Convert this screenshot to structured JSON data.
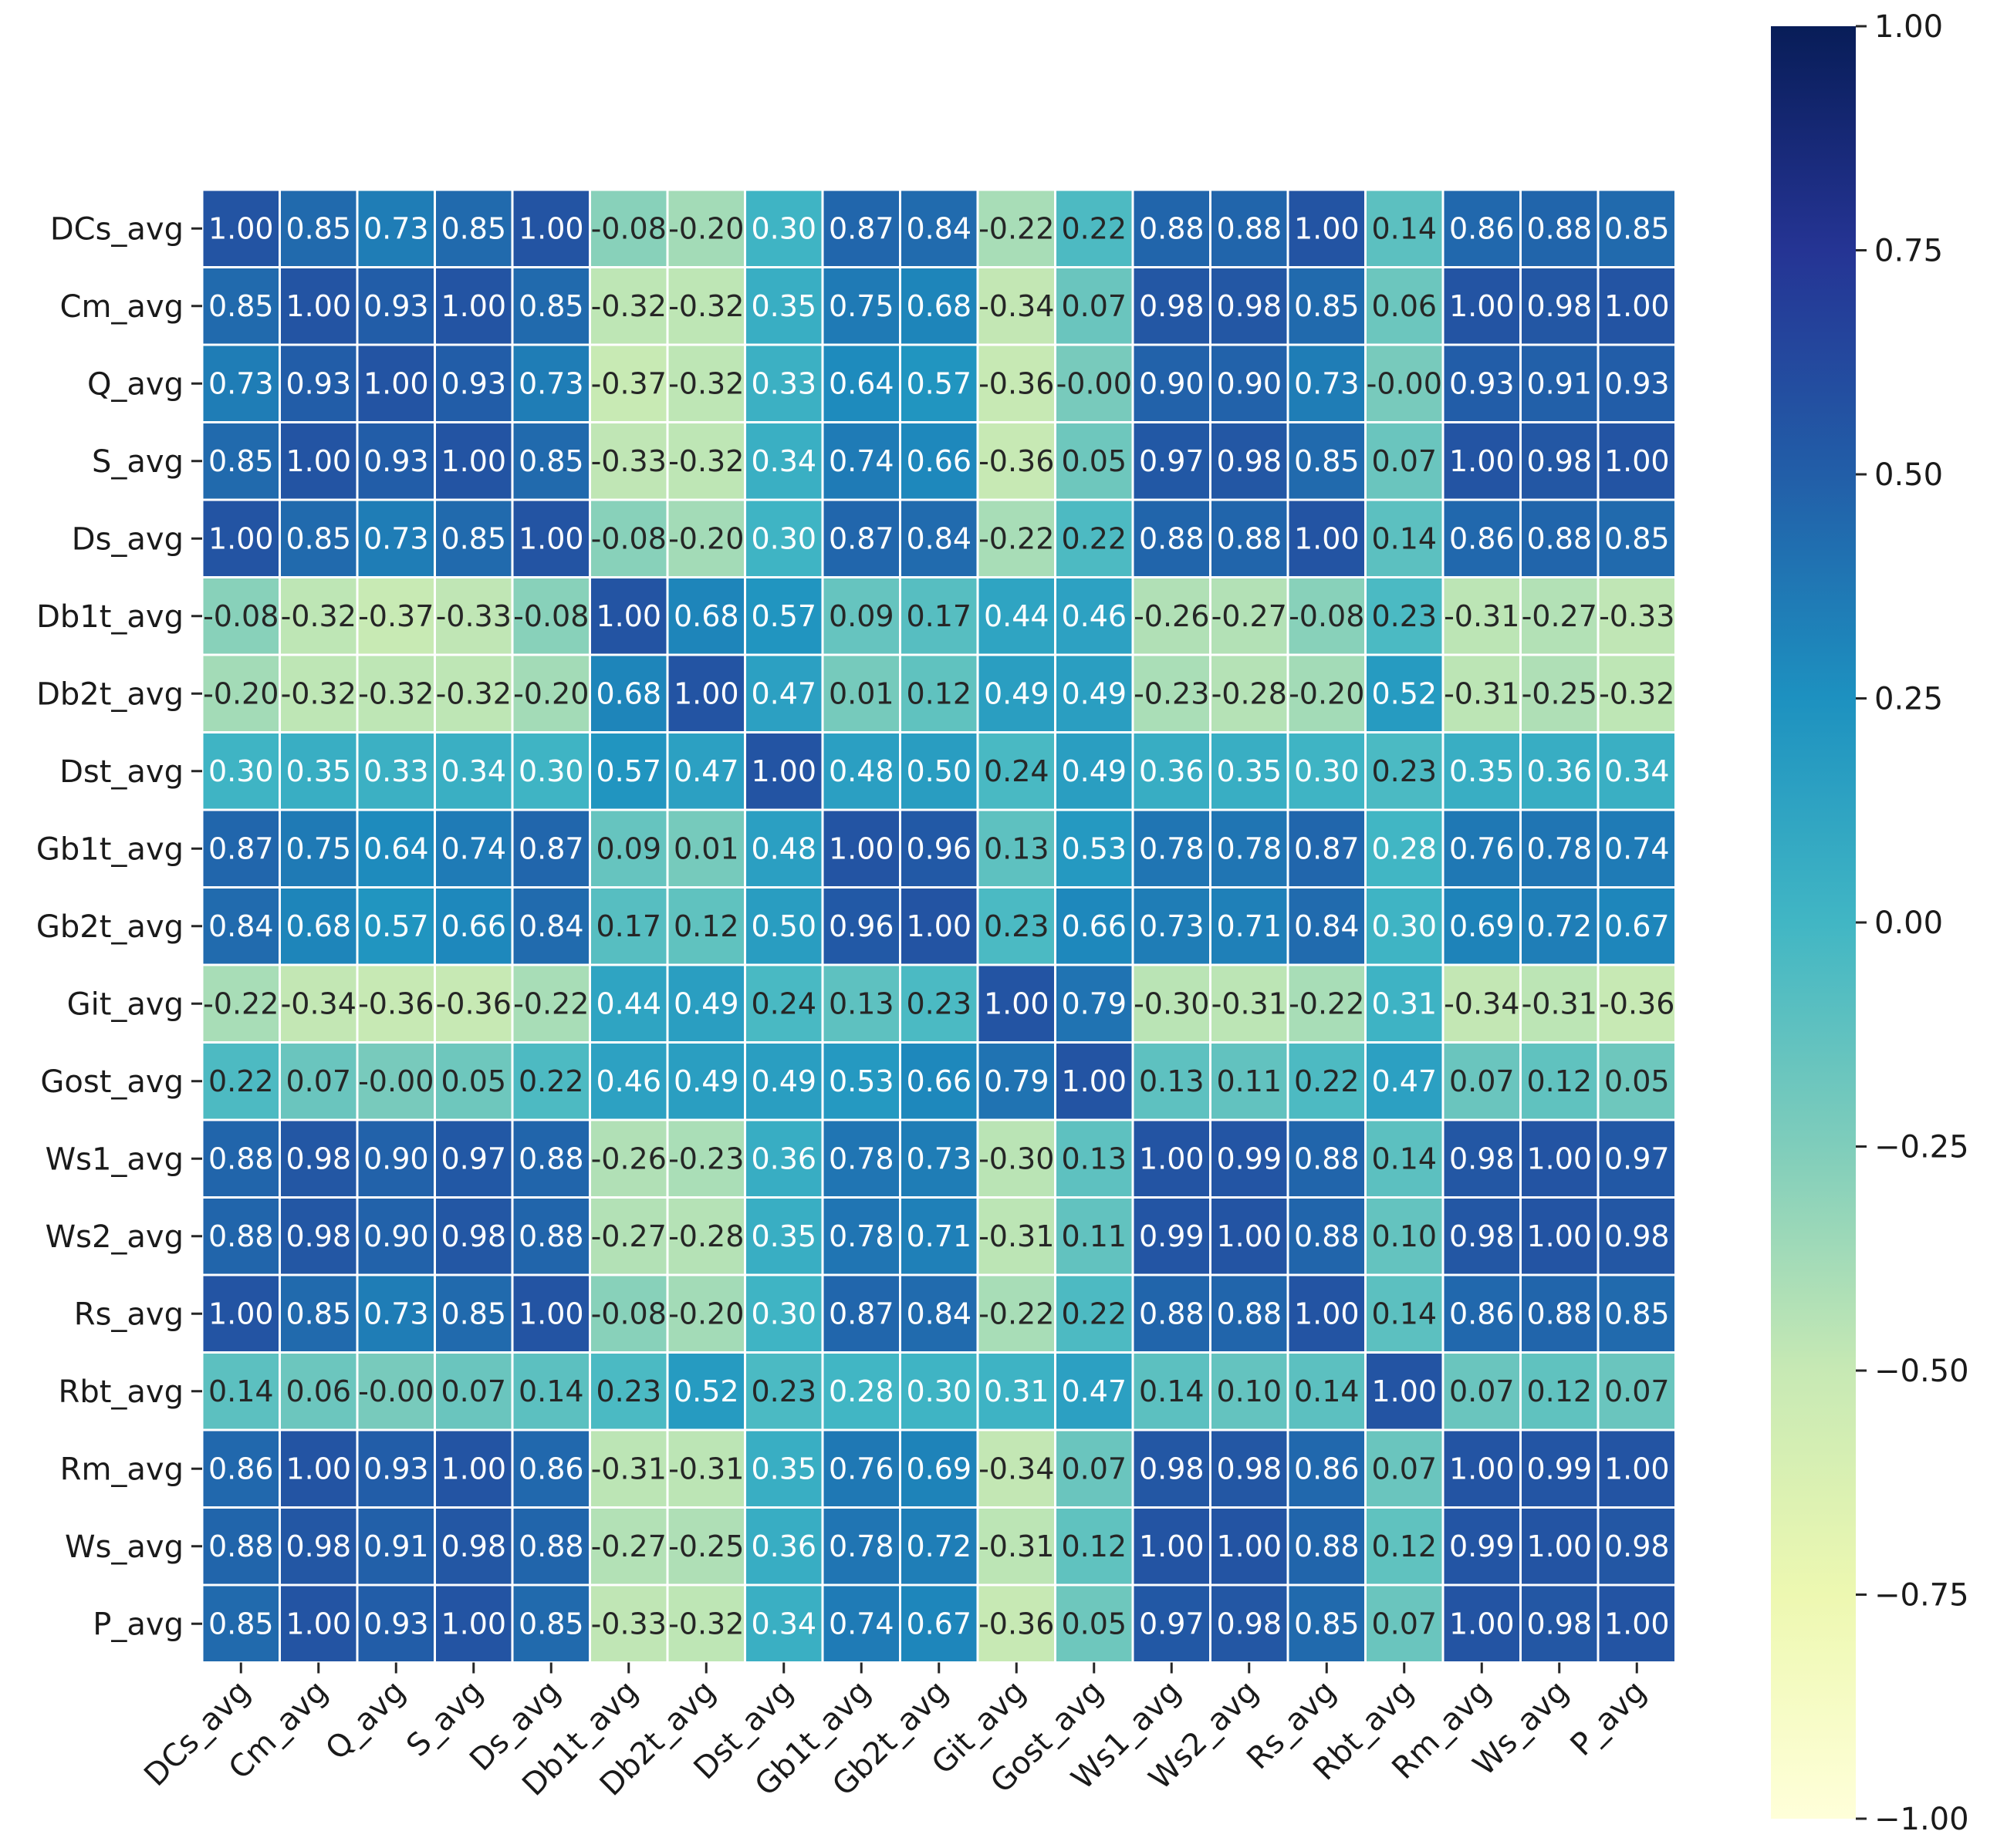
{
  "chart_data": {
    "type": "heatmap",
    "title": "",
    "xlabel": "",
    "ylabel": "",
    "colormap": "YlGnBu",
    "vmin": -1.0,
    "vmax": 1.0,
    "labels": [
      "DCs_avg",
      "Cm_avg",
      "Q_avg",
      "S_avg",
      "Ds_avg",
      "Db1t_avg",
      "Db2t_avg",
      "Dst_avg",
      "Gb1t_avg",
      "Gb2t_avg",
      "Git_avg",
      "Gost_avg",
      "Ws1_avg",
      "Ws2_avg",
      "Rs_avg",
      "Rbt_avg",
      "Rm_avg",
      "Ws_avg",
      "P_avg"
    ],
    "matrix": [
      [
        "1.00",
        "0.85",
        "0.73",
        "0.85",
        "1.00",
        "-0.08",
        "-0.20",
        "0.30",
        "0.87",
        "0.84",
        "-0.22",
        "0.22",
        "0.88",
        "0.88",
        "1.00",
        "0.14",
        "0.86",
        "0.88",
        "0.85"
      ],
      [
        "0.85",
        "1.00",
        "0.93",
        "1.00",
        "0.85",
        "-0.32",
        "-0.32",
        "0.35",
        "0.75",
        "0.68",
        "-0.34",
        "0.07",
        "0.98",
        "0.98",
        "0.85",
        "0.06",
        "1.00",
        "0.98",
        "1.00"
      ],
      [
        "0.73",
        "0.93",
        "1.00",
        "0.93",
        "0.73",
        "-0.37",
        "-0.32",
        "0.33",
        "0.64",
        "0.57",
        "-0.36",
        "-0.00",
        "0.90",
        "0.90",
        "0.73",
        "-0.00",
        "0.93",
        "0.91",
        "0.93"
      ],
      [
        "0.85",
        "1.00",
        "0.93",
        "1.00",
        "0.85",
        "-0.33",
        "-0.32",
        "0.34",
        "0.74",
        "0.66",
        "-0.36",
        "0.05",
        "0.97",
        "0.98",
        "0.85",
        "0.07",
        "1.00",
        "0.98",
        "1.00"
      ],
      [
        "1.00",
        "0.85",
        "0.73",
        "0.85",
        "1.00",
        "-0.08",
        "-0.20",
        "0.30",
        "0.87",
        "0.84",
        "-0.22",
        "0.22",
        "0.88",
        "0.88",
        "1.00",
        "0.14",
        "0.86",
        "0.88",
        "0.85"
      ],
      [
        "-0.08",
        "-0.32",
        "-0.37",
        "-0.33",
        "-0.08",
        "1.00",
        "0.68",
        "0.57",
        "0.09",
        "0.17",
        "0.44",
        "0.46",
        "-0.26",
        "-0.27",
        "-0.08",
        "0.23",
        "-0.31",
        "-0.27",
        "-0.33"
      ],
      [
        "-0.20",
        "-0.32",
        "-0.32",
        "-0.32",
        "-0.20",
        "0.68",
        "1.00",
        "0.47",
        "0.01",
        "0.12",
        "0.49",
        "0.49",
        "-0.23",
        "-0.28",
        "-0.20",
        "0.52",
        "-0.31",
        "-0.25",
        "-0.32"
      ],
      [
        "0.30",
        "0.35",
        "0.33",
        "0.34",
        "0.30",
        "0.57",
        "0.47",
        "1.00",
        "0.48",
        "0.50",
        "0.24",
        "0.49",
        "0.36",
        "0.35",
        "0.30",
        "0.23",
        "0.35",
        "0.36",
        "0.34"
      ],
      [
        "0.87",
        "0.75",
        "0.64",
        "0.74",
        "0.87",
        "0.09",
        "0.01",
        "0.48",
        "1.00",
        "0.96",
        "0.13",
        "0.53",
        "0.78",
        "0.78",
        "0.87",
        "0.28",
        "0.76",
        "0.78",
        "0.74"
      ],
      [
        "0.84",
        "0.68",
        "0.57",
        "0.66",
        "0.84",
        "0.17",
        "0.12",
        "0.50",
        "0.96",
        "1.00",
        "0.23",
        "0.66",
        "0.73",
        "0.71",
        "0.84",
        "0.30",
        "0.69",
        "0.72",
        "0.67"
      ],
      [
        "-0.22",
        "-0.34",
        "-0.36",
        "-0.36",
        "-0.22",
        "0.44",
        "0.49",
        "0.24",
        "0.13",
        "0.23",
        "1.00",
        "0.79",
        "-0.30",
        "-0.31",
        "-0.22",
        "0.31",
        "-0.34",
        "-0.31",
        "-0.36"
      ],
      [
        "0.22",
        "0.07",
        "-0.00",
        "0.05",
        "0.22",
        "0.46",
        "0.49",
        "0.49",
        "0.53",
        "0.66",
        "0.79",
        "1.00",
        "0.13",
        "0.11",
        "0.22",
        "0.47",
        "0.07",
        "0.12",
        "0.05"
      ],
      [
        "0.88",
        "0.98",
        "0.90",
        "0.97",
        "0.88",
        "-0.26",
        "-0.23",
        "0.36",
        "0.78",
        "0.73",
        "-0.30",
        "0.13",
        "1.00",
        "0.99",
        "0.88",
        "0.14",
        "0.98",
        "1.00",
        "0.97"
      ],
      [
        "0.88",
        "0.98",
        "0.90",
        "0.98",
        "0.88",
        "-0.27",
        "-0.28",
        "0.35",
        "0.78",
        "0.71",
        "-0.31",
        "0.11",
        "0.99",
        "1.00",
        "0.88",
        "0.10",
        "0.98",
        "1.00",
        "0.98"
      ],
      [
        "1.00",
        "0.85",
        "0.73",
        "0.85",
        "1.00",
        "-0.08",
        "-0.20",
        "0.30",
        "0.87",
        "0.84",
        "-0.22",
        "0.22",
        "0.88",
        "0.88",
        "1.00",
        "0.14",
        "0.86",
        "0.88",
        "0.85"
      ],
      [
        "0.14",
        "0.06",
        "-0.00",
        "0.07",
        "0.14",
        "0.23",
        "0.52",
        "0.23",
        "0.28",
        "0.30",
        "0.31",
        "0.47",
        "0.14",
        "0.10",
        "0.14",
        "1.00",
        "0.07",
        "0.12",
        "0.07"
      ],
      [
        "0.86",
        "1.00",
        "0.93",
        "1.00",
        "0.86",
        "-0.31",
        "-0.31",
        "0.35",
        "0.76",
        "0.69",
        "-0.34",
        "0.07",
        "0.98",
        "0.98",
        "0.86",
        "0.07",
        "1.00",
        "0.99",
        "1.00"
      ],
      [
        "0.88",
        "0.98",
        "0.91",
        "0.98",
        "0.88",
        "-0.27",
        "-0.25",
        "0.36",
        "0.78",
        "0.72",
        "-0.31",
        "0.12",
        "1.00",
        "1.00",
        "0.88",
        "0.12",
        "0.99",
        "1.00",
        "0.98"
      ],
      [
        "0.85",
        "1.00",
        "0.93",
        "1.00",
        "0.85",
        "-0.33",
        "-0.32",
        "0.34",
        "0.74",
        "0.67",
        "-0.36",
        "0.05",
        "0.97",
        "0.98",
        "0.85",
        "0.07",
        "1.00",
        "0.98",
        "1.00"
      ]
    ],
    "colorbar": {
      "ticks": [
        1.0,
        0.75,
        0.5,
        0.25,
        0.0,
        -0.25,
        -0.5,
        -0.75,
        -1.0
      ],
      "tick_labels": [
        "1.00",
        "0.75",
        "0.50",
        "0.25",
        "0.00",
        "−0.25",
        "−0.50",
        "−0.75",
        "−1.00"
      ]
    }
  }
}
